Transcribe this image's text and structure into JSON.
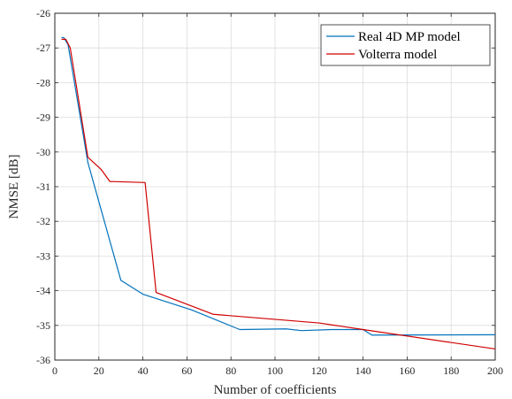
{
  "chart_data": {
    "type": "line",
    "xlabel": "Number of coefficients",
    "ylabel": "NMSE [dB]",
    "xlim": [
      0,
      200
    ],
    "ylim": [
      -36,
      -26
    ],
    "xticks": [
      0,
      20,
      40,
      60,
      80,
      100,
      120,
      140,
      160,
      180,
      200
    ],
    "yticks": [
      -36,
      -35,
      -34,
      -33,
      -32,
      -31,
      -30,
      -29,
      -28,
      -27,
      -26
    ],
    "grid": true,
    "legend_position": "top-right",
    "series": [
      {
        "name": "Real 4D MP model",
        "color": "#0072bd",
        "x": [
          3,
          4,
          6,
          15,
          30,
          40,
          62,
          84,
          105,
          112,
          126,
          140,
          144,
          200
        ],
        "y": [
          -26.7,
          -26.7,
          -26.9,
          -30.3,
          -33.7,
          -34.1,
          -34.55,
          -35.12,
          -35.1,
          -35.15,
          -35.12,
          -35.12,
          -35.28,
          -35.27
        ]
      },
      {
        "name": "Volterra model",
        "color": "#d00000",
        "x": [
          3,
          5,
          7,
          15,
          21,
          25,
          41,
          46,
          72,
          120,
          140,
          200
        ],
        "y": [
          -26.75,
          -26.75,
          -27.0,
          -30.15,
          -30.5,
          -30.85,
          -30.88,
          -34.05,
          -34.68,
          -34.93,
          -35.12,
          -35.68
        ]
      }
    ]
  }
}
